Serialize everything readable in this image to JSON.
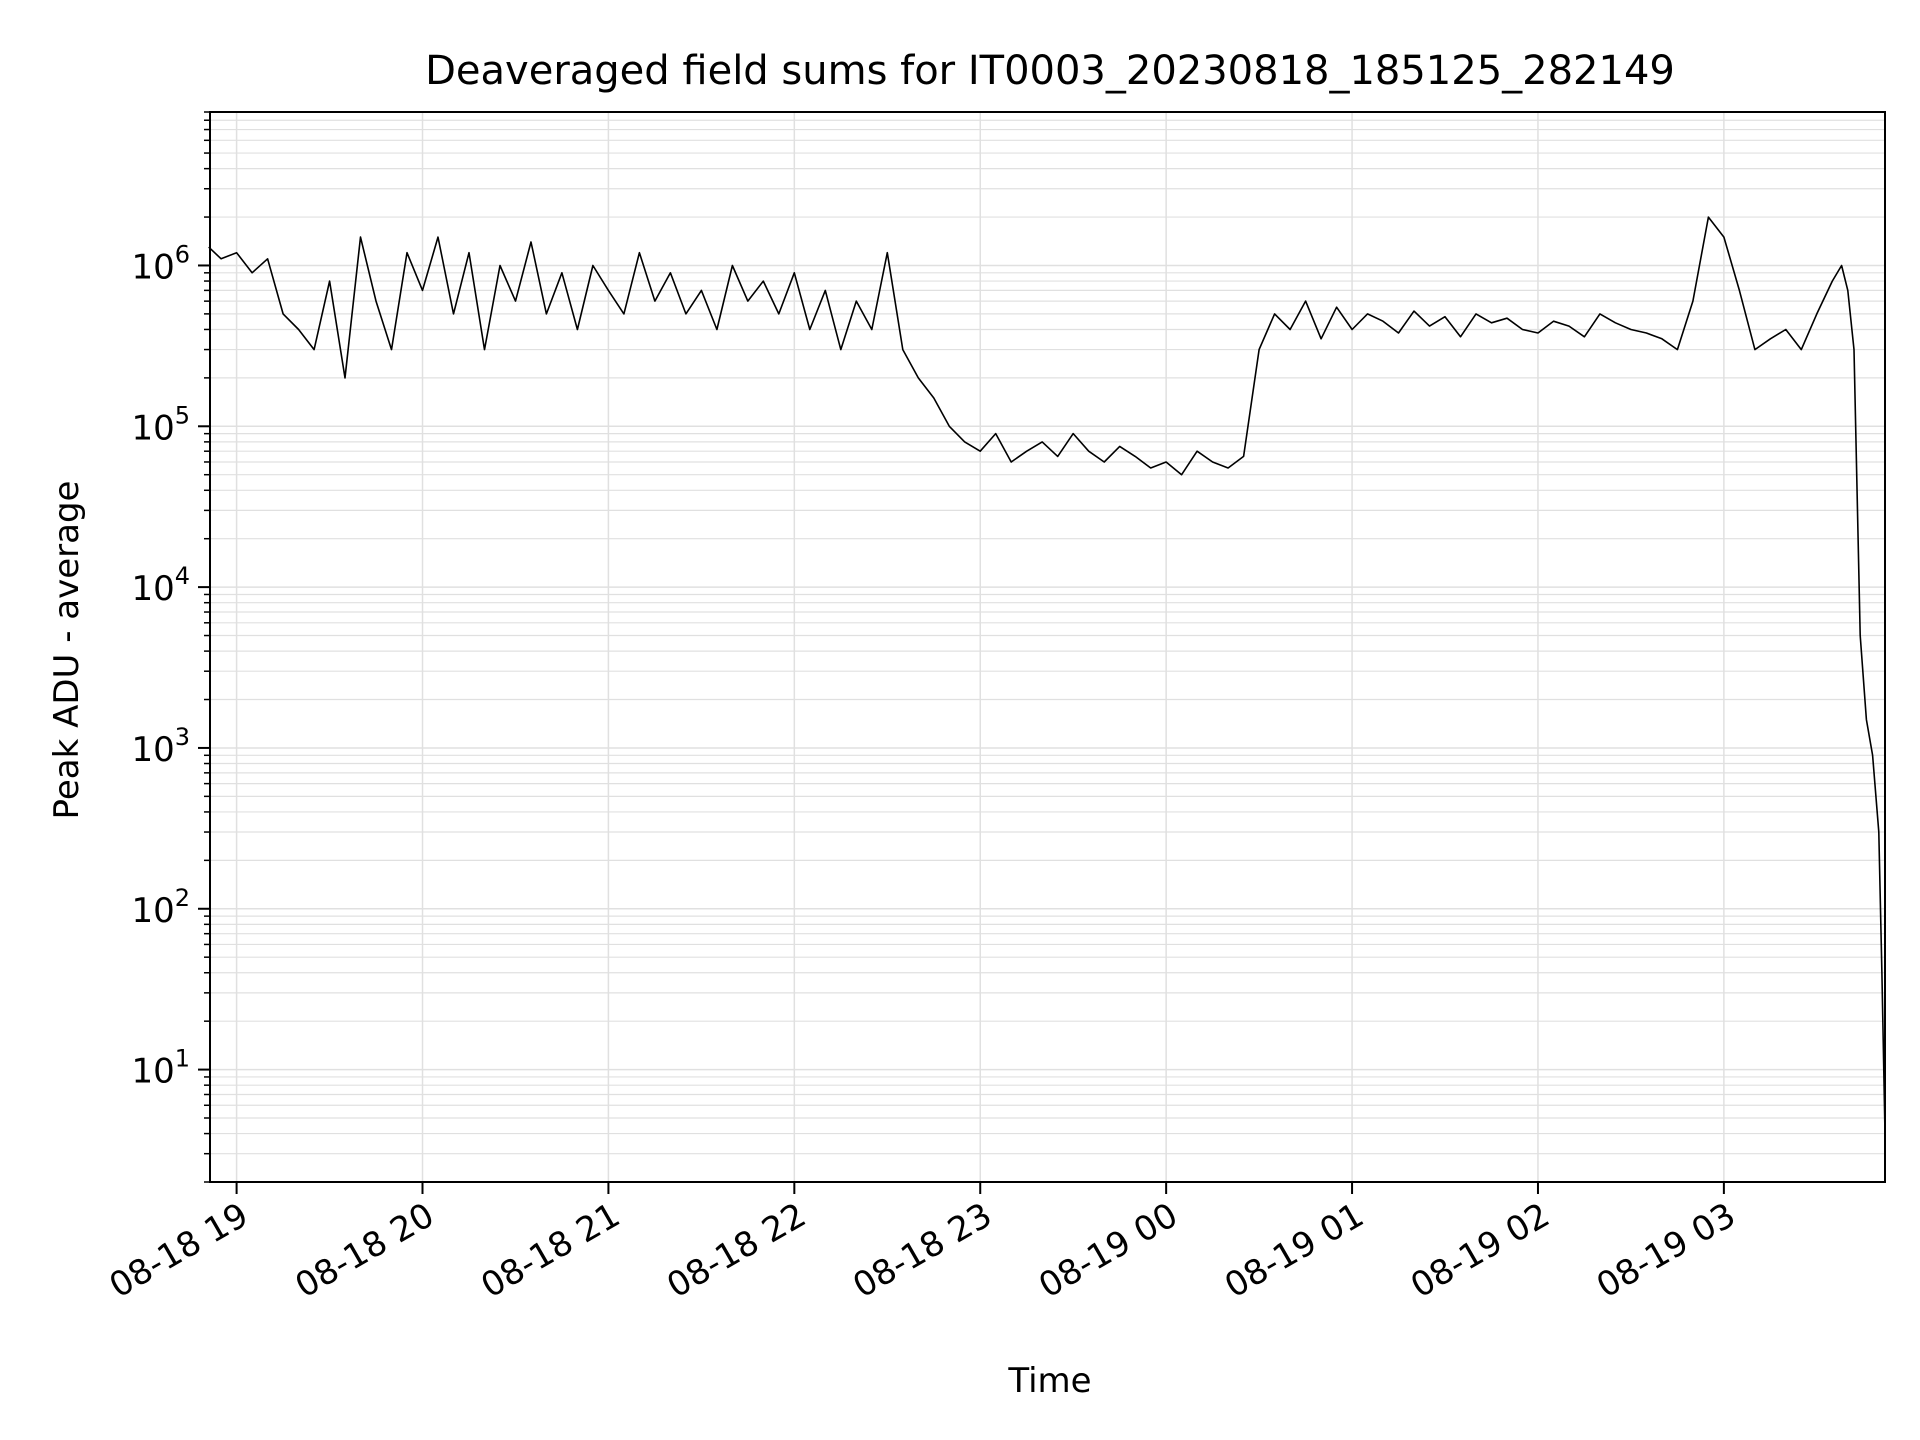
{
  "chart_data": {
    "type": "line",
    "title": "Deaveraged field sums for IT0003_20230818_185125_282149",
    "xlabel": "Time",
    "ylabel": "Peak ADU - average",
    "yscale": "log",
    "ylim": [
      2,
      9000000
    ],
    "xlim": [
      "2023-08-18 18:51:25",
      "2023-08-19 03:52:00"
    ],
    "grid": true,
    "grid_color": "#e0e0e0",
    "line_color": "#000000",
    "x_ticks": [
      {
        "value": "2023-08-18 19:00",
        "label": "08-18 19"
      },
      {
        "value": "2023-08-18 20:00",
        "label": "08-18 20"
      },
      {
        "value": "2023-08-18 21:00",
        "label": "08-18 21"
      },
      {
        "value": "2023-08-18 22:00",
        "label": "08-18 22"
      },
      {
        "value": "2023-08-18 23:00",
        "label": "08-18 23"
      },
      {
        "value": "2023-08-19 00:00",
        "label": "08-19 00"
      },
      {
        "value": "2023-08-19 01:00",
        "label": "08-19 01"
      },
      {
        "value": "2023-08-19 02:00",
        "label": "08-19 02"
      },
      {
        "value": "2023-08-19 03:00",
        "label": "08-19 03"
      }
    ],
    "y_ticks": [
      {
        "value": 10,
        "base": "10",
        "exp": "1"
      },
      {
        "value": 100,
        "base": "10",
        "exp": "2"
      },
      {
        "value": 1000,
        "base": "10",
        "exp": "3"
      },
      {
        "value": 10000,
        "base": "10",
        "exp": "4"
      },
      {
        "value": 100000,
        "base": "10",
        "exp": "5"
      },
      {
        "value": 1000000,
        "base": "10",
        "exp": "6"
      }
    ],
    "series": [
      {
        "x": [
          "2023-08-18 18:51",
          "2023-08-18 18:55",
          "2023-08-18 19:00",
          "2023-08-18 19:05",
          "2023-08-18 19:10",
          "2023-08-18 19:15",
          "2023-08-18 19:20",
          "2023-08-18 19:25",
          "2023-08-18 19:30",
          "2023-08-18 19:35",
          "2023-08-18 19:40",
          "2023-08-18 19:45",
          "2023-08-18 19:50",
          "2023-08-18 19:55",
          "2023-08-18 20:00",
          "2023-08-18 20:05",
          "2023-08-18 20:10",
          "2023-08-18 20:15",
          "2023-08-18 20:20",
          "2023-08-18 20:25",
          "2023-08-18 20:30",
          "2023-08-18 20:35",
          "2023-08-18 20:40",
          "2023-08-18 20:45",
          "2023-08-18 20:50",
          "2023-08-18 20:55",
          "2023-08-18 21:00",
          "2023-08-18 21:05",
          "2023-08-18 21:10",
          "2023-08-18 21:15",
          "2023-08-18 21:20",
          "2023-08-18 21:25",
          "2023-08-18 21:30",
          "2023-08-18 21:35",
          "2023-08-18 21:40",
          "2023-08-18 21:45",
          "2023-08-18 21:50",
          "2023-08-18 21:55",
          "2023-08-18 22:00",
          "2023-08-18 22:05",
          "2023-08-18 22:10",
          "2023-08-18 22:15",
          "2023-08-18 22:20",
          "2023-08-18 22:25",
          "2023-08-18 22:30",
          "2023-08-18 22:35",
          "2023-08-18 22:40",
          "2023-08-18 22:45",
          "2023-08-18 22:50",
          "2023-08-18 22:55",
          "2023-08-18 23:00",
          "2023-08-18 23:05",
          "2023-08-18 23:10",
          "2023-08-18 23:15",
          "2023-08-18 23:20",
          "2023-08-18 23:25",
          "2023-08-18 23:30",
          "2023-08-18 23:35",
          "2023-08-18 23:40",
          "2023-08-18 23:45",
          "2023-08-18 23:50",
          "2023-08-18 23:55",
          "2023-08-19 00:00",
          "2023-08-19 00:05",
          "2023-08-19 00:10",
          "2023-08-19 00:15",
          "2023-08-19 00:20",
          "2023-08-19 00:25",
          "2023-08-19 00:30",
          "2023-08-19 00:35",
          "2023-08-19 00:40",
          "2023-08-19 00:45",
          "2023-08-19 00:50",
          "2023-08-19 00:55",
          "2023-08-19 01:00",
          "2023-08-19 01:05",
          "2023-08-19 01:10",
          "2023-08-19 01:15",
          "2023-08-19 01:20",
          "2023-08-19 01:25",
          "2023-08-19 01:30",
          "2023-08-19 01:35",
          "2023-08-19 01:40",
          "2023-08-19 01:45",
          "2023-08-19 01:50",
          "2023-08-19 01:55",
          "2023-08-19 02:00",
          "2023-08-19 02:05",
          "2023-08-19 02:10",
          "2023-08-19 02:15",
          "2023-08-19 02:20",
          "2023-08-19 02:25",
          "2023-08-19 02:30",
          "2023-08-19 02:35",
          "2023-08-19 02:40",
          "2023-08-19 02:45",
          "2023-08-19 02:50",
          "2023-08-19 02:55",
          "2023-08-19 03:00",
          "2023-08-19 03:05",
          "2023-08-19 03:10",
          "2023-08-19 03:15",
          "2023-08-19 03:20",
          "2023-08-19 03:25",
          "2023-08-19 03:30",
          "2023-08-19 03:35",
          "2023-08-19 03:38",
          "2023-08-19 03:40",
          "2023-08-19 03:42",
          "2023-08-19 03:44",
          "2023-08-19 03:46",
          "2023-08-19 03:48",
          "2023-08-19 03:50",
          "2023-08-19 03:51",
          "2023-08-19 03:52"
        ],
        "y": [
          1300000,
          1100000,
          1200000,
          900000,
          1100000,
          500000,
          400000,
          300000,
          800000,
          200000,
          1500000,
          600000,
          300000,
          1200000,
          700000,
          1500000,
          500000,
          1200000,
          300000,
          1000000,
          600000,
          1400000,
          500000,
          900000,
          400000,
          1000000,
          700000,
          500000,
          1200000,
          600000,
          900000,
          500000,
          700000,
          400000,
          1000000,
          600000,
          800000,
          500000,
          900000,
          400000,
          700000,
          300000,
          600000,
          400000,
          1200000,
          300000,
          200000,
          150000,
          100000,
          80000,
          70000,
          90000,
          60000,
          70000,
          80000,
          65000,
          90000,
          70000,
          60000,
          75000,
          65000,
          55000,
          60000,
          50000,
          70000,
          60000,
          55000,
          65000,
          300000,
          500000,
          400000,
          600000,
          350000,
          550000,
          400000,
          500000,
          450000,
          380000,
          520000,
          420000,
          480000,
          360000,
          500000,
          440000,
          470000,
          400000,
          380000,
          450000,
          420000,
          360000,
          500000,
          440000,
          400000,
          380000,
          350000,
          300000,
          600000,
          2000000,
          1500000,
          700000,
          300000,
          350000,
          400000,
          300000,
          500000,
          800000,
          1000000,
          700000,
          300000,
          5000,
          1500,
          900,
          300,
          40,
          4
        ]
      }
    ]
  }
}
